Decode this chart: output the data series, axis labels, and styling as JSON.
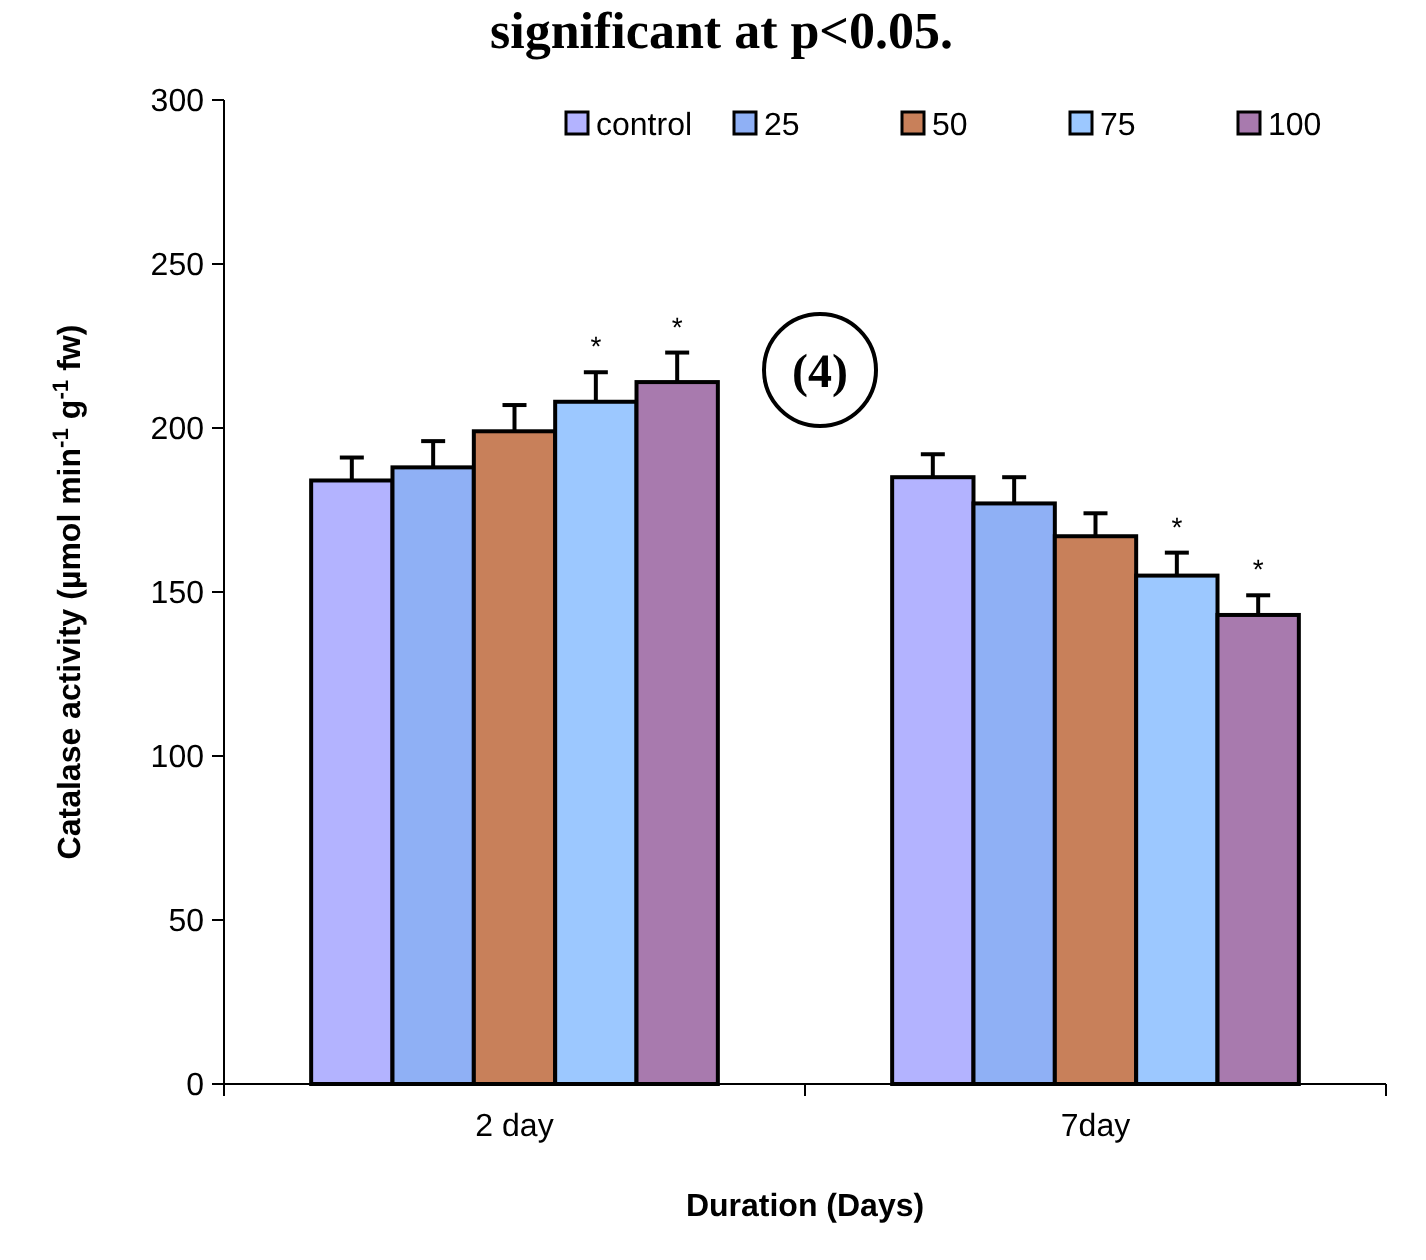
{
  "chart_data": {
    "type": "bar",
    "title": "significant at p<0.05.",
    "xlabel": "Duration (Days)",
    "ylabel": "Catalase activity (µmol min$^{-1}$ g$^{-1}$ fw)",
    "categories": [
      "2 day",
      "7day"
    ],
    "series": [
      {
        "name": "control",
        "color": "#b3b3ff",
        "values": [
          184,
          185
        ],
        "errors": [
          7,
          7
        ]
      },
      {
        "name": "25",
        "color": "#8fb0f5",
        "values": [
          188,
          177
        ],
        "errors": [
          8,
          8
        ]
      },
      {
        "name": "50",
        "color": "#c8805a",
        "values": [
          199,
          167
        ],
        "errors": [
          8,
          7
        ]
      },
      {
        "name": "75",
        "color": "#9cc8ff",
        "values": [
          208,
          155
        ],
        "errors": [
          9,
          7
        ],
        "value_labels": [
          "*",
          "*"
        ]
      },
      {
        "name": "100",
        "color": "#a87aae",
        "values": [
          214,
          143
        ],
        "errors": [
          9,
          6
        ],
        "value_labels": [
          "*",
          "*"
        ]
      }
    ],
    "ylim": [
      0,
      300
    ],
    "yticks": [
      0,
      50,
      100,
      150,
      200,
      250,
      300
    ],
    "grid": false,
    "legend": "top right",
    "annotations": [
      "(4)"
    ]
  }
}
